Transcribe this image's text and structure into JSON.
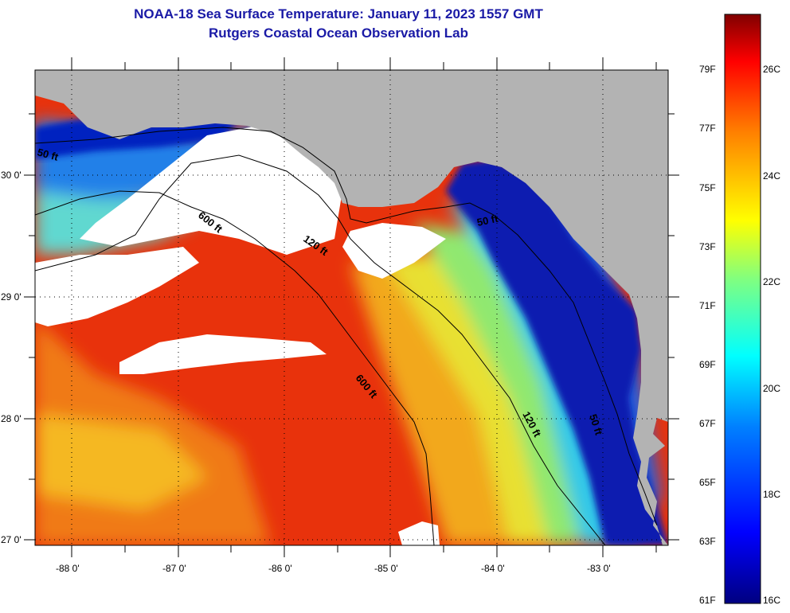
{
  "header": {
    "title": "NOAA-18 Sea Surface Temperature:  January 11, 2023 1557 GMT",
    "subtitle": "Rutgers Coastal Ocean Observation Lab"
  },
  "map": {
    "lon_ticks": [
      "-88 0'",
      "-87 0'",
      "-86 0'",
      "-85 0'",
      "-84 0'",
      "-83 0'"
    ],
    "lat_ticks": [
      "30 0'",
      "29 0'",
      "28 0'",
      "27 0'"
    ],
    "contours": [
      "50 ft",
      "600 ft",
      "120 ft",
      "50 ft",
      "600 ft",
      "120 ft",
      "50 ft"
    ],
    "colors": {
      "land": "#b3b3b3",
      "cloud": "#ffffff",
      "cold": "#0000a0",
      "warm": "#e8230a"
    }
  },
  "colorbar": {
    "fahrenheit": [
      "79F",
      "77F",
      "75F",
      "73F",
      "71F",
      "69F",
      "67F",
      "65F",
      "63F",
      "61F"
    ],
    "celsius": [
      "26C",
      "24C",
      "22C",
      "20C",
      "18C",
      "16C"
    ]
  }
}
